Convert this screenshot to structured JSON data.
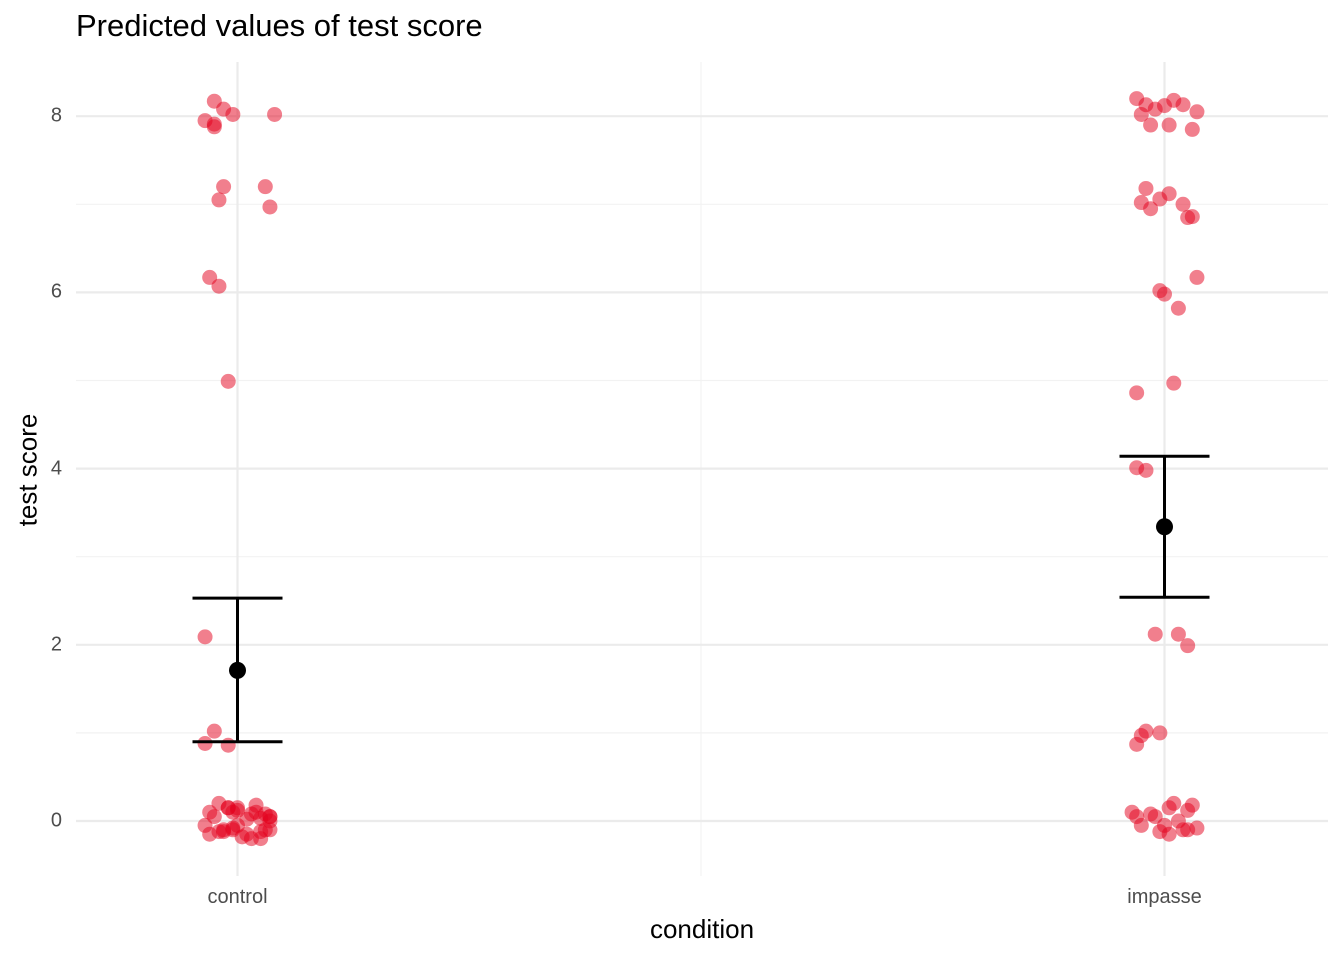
{
  "chart_data": {
    "type": "scatter",
    "title": "Predicted values of test score",
    "xlabel": "condition",
    "ylabel": "test score",
    "categories": [
      "control",
      "impasse"
    ],
    "ylim": [
      -0.6,
      8.6
    ],
    "yticks": [
      0,
      2,
      4,
      6,
      8
    ],
    "grid": true,
    "colors": {
      "points": "#e3001b",
      "estimate": "#000000",
      "grid": "#ebebeb"
    },
    "estimates": [
      {
        "category": "control",
        "predicted": 1.71,
        "ci_low": 0.9,
        "ci_high": 2.53
      },
      {
        "category": "impasse",
        "predicted": 3.34,
        "ci_low": 2.54,
        "ci_high": 4.14
      }
    ],
    "points": [
      {
        "category": "control",
        "x": [
          -0.35,
          -0.25,
          -0.15,
          -0.25,
          -0.05,
          0.4,
          -0.25,
          0.3,
          -0.15,
          0.35,
          -0.2,
          -0.3,
          -0.2,
          -0.1,
          -0.35,
          -0.25,
          -0.1,
          -0.35,
          -0.3,
          -0.2,
          -0.1,
          0,
          0.2,
          0.35,
          -0.35,
          -0.15,
          -0.05,
          0.15,
          0.25,
          0.3,
          0.35,
          -0.3,
          -0.2,
          -0.05,
          0.05,
          0.15,
          0.25,
          0.35,
          -0.1,
          0,
          0.1,
          0.2,
          0.3,
          0.35,
          -0.15,
          -0.25,
          0,
          0.1,
          0.25,
          -0.05
        ],
        "y": [
          7.95,
          8.17,
          8.08,
          7.88,
          8.02,
          8.02,
          7.91,
          7.2,
          7.2,
          6.97,
          7.05,
          6.17,
          6.07,
          4.99,
          2.09,
          1.02,
          0.86,
          0.88,
          0.1,
          0.2,
          0.15,
          0.12,
          0.18,
          0.05,
          -0.05,
          -0.1,
          0.1,
          0.08,
          -0.2,
          0.08,
          -0.1,
          -0.15,
          -0.12,
          -0.08,
          -0.18,
          -0.2,
          -0.12,
          0.05,
          0.15,
          -0.05,
          0.02,
          0.1,
          -0.1,
          0,
          -0.12,
          0.05,
          0.15,
          -0.15,
          0.03,
          -0.1
        ]
      },
      {
        "category": "impasse",
        "x": [
          -0.3,
          -0.2,
          -0.1,
          0,
          0.1,
          0.2,
          -0.25,
          -0.15,
          0.05,
          0.3,
          0.35,
          -0.2,
          -0.05,
          0.05,
          0.2,
          0.25,
          0.3,
          -0.15,
          -0.25,
          -0.05,
          0.35,
          0,
          0.15,
          -0.3,
          0.1,
          -0.3,
          -0.2,
          -0.1,
          0.15,
          0.25,
          -0.3,
          -0.2,
          -0.05,
          -0.25,
          0.05,
          -0.3,
          -0.15,
          0,
          0.1,
          0.2,
          0.3,
          -0.35,
          -0.25,
          -0.1,
          0.05,
          0.15,
          0.25,
          0.35,
          -0.05,
          0.25
        ],
        "y": [
          8.2,
          8.13,
          8.08,
          8.12,
          8.18,
          8.13,
          8.02,
          7.9,
          7.9,
          7.85,
          8.05,
          7.18,
          7.06,
          7.12,
          7.0,
          6.85,
          6.86,
          6.95,
          7.02,
          6.02,
          6.17,
          5.98,
          5.82,
          4.86,
          4.97,
          4.01,
          3.98,
          2.12,
          2.12,
          1.99,
          0.87,
          1.02,
          1.0,
          0.97,
          0.15,
          0.05,
          0.08,
          -0.05,
          0.2,
          -0.1,
          0.18,
          0.1,
          -0.05,
          0.05,
          -0.15,
          0.0,
          -0.1,
          -0.08,
          -0.12,
          0.12
        ]
      }
    ]
  }
}
